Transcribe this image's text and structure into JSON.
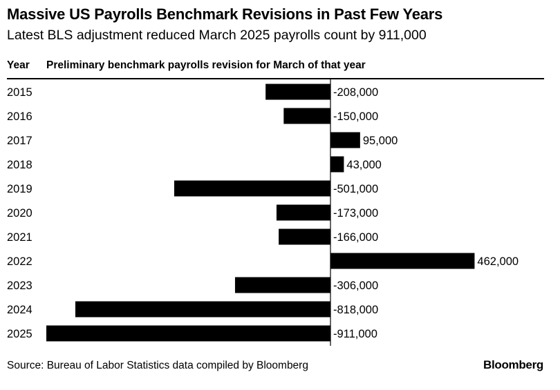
{
  "header": {
    "title": "Massive US Payrolls Benchmark Revisions in Past Few Years",
    "subtitle": "Latest BLS adjustment reduced March 2025 payrolls count by 911,000",
    "col_year": "Year",
    "col_values": "Preliminary benchmark payrolls revision for March of that year"
  },
  "chart_data": {
    "type": "bar",
    "orientation": "horizontal",
    "categories": [
      "2015",
      "2016",
      "2017",
      "2018",
      "2019",
      "2020",
      "2021",
      "2022",
      "2023",
      "2024",
      "2025"
    ],
    "values": [
      -208000,
      -150000,
      95000,
      43000,
      -501000,
      -173000,
      -166000,
      462000,
      -306000,
      -818000,
      -911000
    ],
    "labels": [
      "-208,000",
      "-150,000",
      "95,000",
      "43,000",
      "-501,000",
      "-173,000",
      "-166,000",
      "462,000",
      "-306,000",
      "-818,000",
      "-911,000"
    ],
    "bar_color": "#000000",
    "grid": false,
    "legend": "none"
  },
  "footer": {
    "source": "Source: Bureau of Labor Statistics data compiled by Bloomberg",
    "brand": "Bloomberg"
  }
}
